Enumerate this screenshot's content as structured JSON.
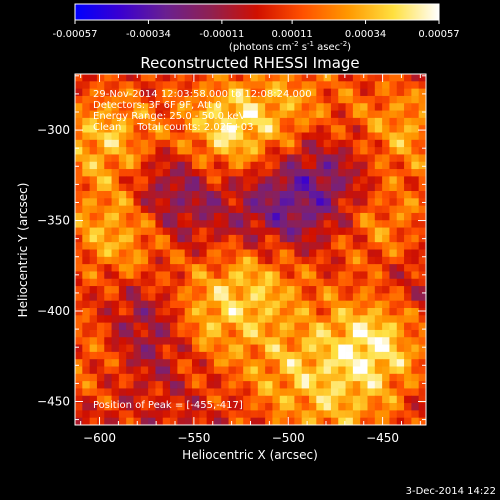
{
  "chart_data": {
    "type": "heatmap",
    "title": "Reconstructed RHESSI Image",
    "xlabel": "Heliocentric X (arcsec)",
    "ylabel": "Heliocentric Y (arcsec)",
    "xlim": [
      -613,
      -427
    ],
    "ylim": [
      -463,
      -269
    ],
    "x_ticks": [
      -600,
      -550,
      -500,
      -450
    ],
    "y_ticks": [
      -450,
      -400,
      -350,
      -300
    ],
    "colorbar": {
      "ticks": [
        "-0.00057",
        "-0.00034",
        "-0.00011",
        "0.00011",
        "0.00034",
        "0.00057"
      ],
      "range": [
        -0.00057,
        0.00057
      ],
      "units_label": "(photons cm-2 s-1 asec-2)"
    },
    "colormap": [
      "#0000ff",
      "#3a00d0",
      "#6a2090",
      "#902050",
      "#d01000",
      "#ff5000",
      "#ff9800",
      "#ffe040",
      "#ffffff"
    ],
    "annotations": {
      "time_range": "29-Nov-2014 12:03:58.000 to 12:08:24.000",
      "detectors": "Detectors: 3F 6F 9F, Att 0",
      "energy": "Energy Range: 25.0 - 50.0 keV",
      "clean": "Clean     Total counts: 2.02E+03",
      "peak": "Position of Peak = [-455,-417]"
    },
    "peak_position": [
      -455,
      -417
    ],
    "blobs": [
      {
        "x": -455,
        "y": -417,
        "amp": 1.0
      },
      {
        "x": -532,
        "y": -300,
        "amp": 0.9
      },
      {
        "x": -595,
        "y": -305,
        "amp": 0.75
      },
      {
        "x": -588,
        "y": -355,
        "amp": 0.8
      },
      {
        "x": -550,
        "y": -405,
        "amp": 0.8
      },
      {
        "x": -515,
        "y": -385,
        "amp": 0.65
      },
      {
        "x": -450,
        "y": -355,
        "amp": 0.55
      },
      {
        "x": -440,
        "y": -300,
        "amp": 0.6
      },
      {
        "x": -500,
        "y": -435,
        "amp": 0.55
      },
      {
        "x": -600,
        "y": -420,
        "amp": 0.5
      },
      {
        "x": -470,
        "y": -460,
        "amp": 0.45
      },
      {
        "x": -495,
        "y": -285,
        "amp": 0.45
      },
      {
        "x": -565,
        "y": -335,
        "amp": -0.65
      },
      {
        "x": -572,
        "y": -410,
        "amp": -0.85
      },
      {
        "x": -478,
        "y": -325,
        "amp": -0.45
      },
      {
        "x": -505,
        "y": -345,
        "amp": -0.5
      },
      {
        "x": -438,
        "y": -385,
        "amp": -0.3
      }
    ]
  },
  "footer": {
    "date": "3-Dec-2014 14:22"
  }
}
